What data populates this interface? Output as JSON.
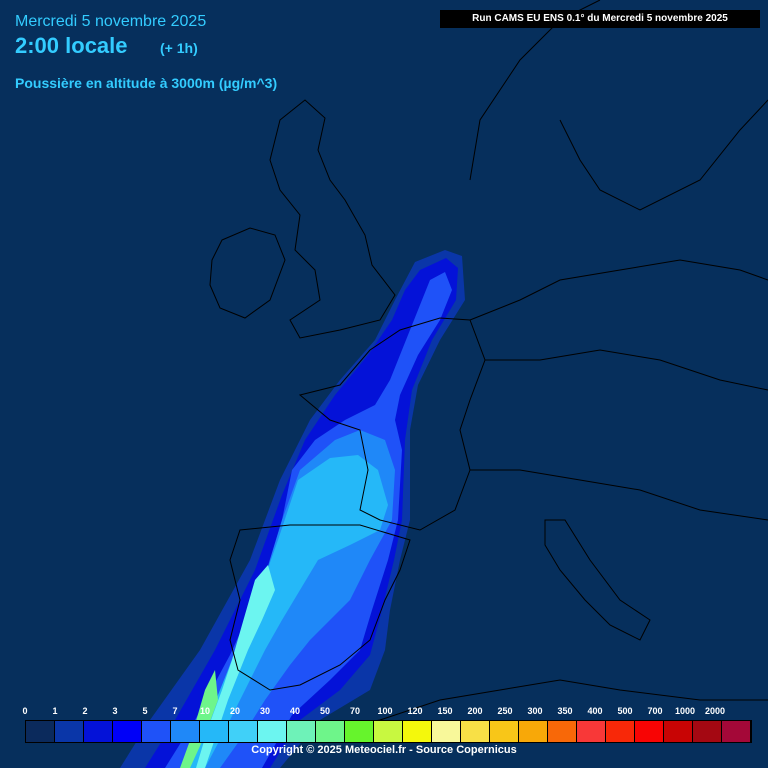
{
  "header": {
    "date": "Mercredi 5 novembre 2025",
    "time": "2:00 locale",
    "offset": "(+ 1h)",
    "variable": "Poussière en altitude à 3000m (µg/m^3)",
    "run_info": "Run CAMS EU ENS 0.1° du Mercredi 5 novembre 2025"
  },
  "legend": {
    "thresholds": [
      "0",
      "1",
      "2",
      "3",
      "5",
      "7",
      "10",
      "20",
      "30",
      "40",
      "50",
      "70",
      "100",
      "120",
      "150",
      "200",
      "250",
      "300",
      "350",
      "400",
      "500",
      "700",
      "1000",
      "2000"
    ],
    "colors": [
      "#0b2a5c",
      "#0a36a8",
      "#0412d8",
      "#0000f8",
      "#1f52f8",
      "#1f88f8",
      "#25b8f8",
      "#40d0f8",
      "#6cf5f0",
      "#6ef2b8",
      "#6ef58a",
      "#66f42c",
      "#c8f840",
      "#f4f80c",
      "#f8f89a",
      "#f8e046",
      "#f8c618",
      "#f8a808",
      "#f86808",
      "#f83838",
      "#f82808",
      "#f80404",
      "#c80404",
      "#a40812",
      "#a40838"
    ],
    "copyright": "Copyright © 2025 Meteociel.fr - Source Copernicus"
  },
  "map": {
    "background": "#062f5c",
    "coast_color": "#000000"
  }
}
